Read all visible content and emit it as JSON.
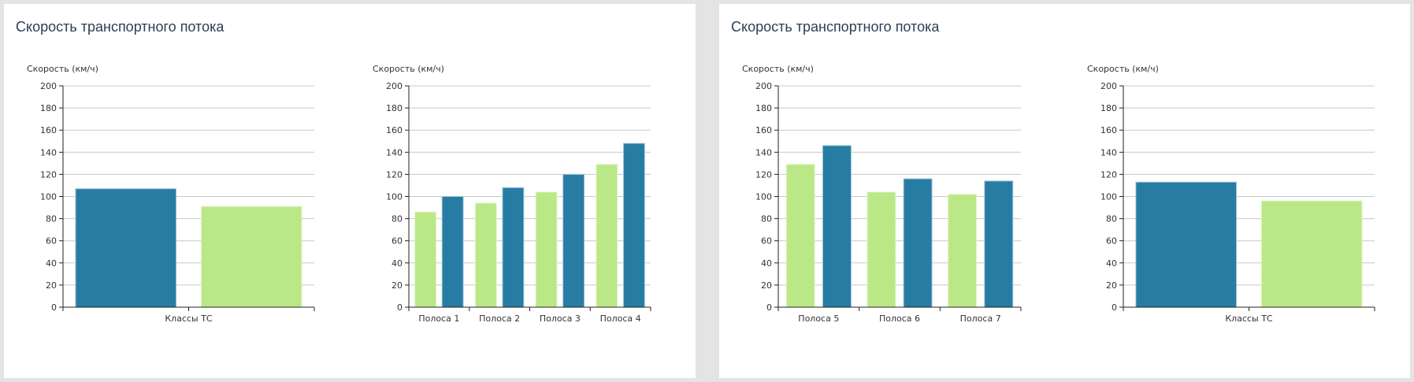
{
  "colors": {
    "blue": "#277ca3",
    "green": "#bbe887",
    "blue_stroke": "#9cc4d8",
    "green_stroke": "#e0f5c9",
    "title": "#2a3f54",
    "background": "#e4e4e4",
    "panel": "#ffffff"
  },
  "panels": [
    {
      "title": "Скорость транспортного потока"
    },
    {
      "title": "Скорость транспортного потока"
    }
  ],
  "chart_data": [
    {
      "type": "bar",
      "title": "Скорость транспортного потока",
      "ylabel": "Скорость (км/ч)",
      "xlabel": "",
      "ylim": [
        0,
        200
      ],
      "yticks": [
        0,
        20,
        40,
        60,
        80,
        100,
        120,
        140,
        160,
        180,
        200
      ],
      "grid": true,
      "categories": [
        "Классы ТС"
      ],
      "series": [
        {
          "name": "series-blue",
          "color": "#277ca3",
          "values": [
            107
          ]
        },
        {
          "name": "series-green",
          "color": "#bbe887",
          "values": [
            91
          ]
        }
      ]
    },
    {
      "type": "bar",
      "title": "Скорость транспортного потока",
      "ylabel": "Скорость (км/ч)",
      "xlabel": "",
      "ylim": [
        0,
        200
      ],
      "yticks": [
        0,
        20,
        40,
        60,
        80,
        100,
        120,
        140,
        160,
        180,
        200
      ],
      "grid": true,
      "categories": [
        "Полоса 1",
        "Полоса 2",
        "Полоса 3",
        "Полоса 4"
      ],
      "series": [
        {
          "name": "series-green",
          "color": "#bbe887",
          "values": [
            86,
            94,
            104,
            129
          ]
        },
        {
          "name": "series-blue",
          "color": "#277ca3",
          "values": [
            100,
            108,
            120,
            148
          ]
        }
      ]
    },
    {
      "type": "bar",
      "title": "Скорость транспортного потока",
      "ylabel": "Скорость (км/ч)",
      "xlabel": "",
      "ylim": [
        0,
        200
      ],
      "yticks": [
        0,
        20,
        40,
        60,
        80,
        100,
        120,
        140,
        160,
        180,
        200
      ],
      "grid": true,
      "categories": [
        "Полоса 5",
        "Полоса 6",
        "Полоса 7"
      ],
      "series": [
        {
          "name": "series-green",
          "color": "#bbe887",
          "values": [
            129,
            104,
            102
          ]
        },
        {
          "name": "series-blue",
          "color": "#277ca3",
          "values": [
            146,
            116,
            114
          ]
        }
      ]
    },
    {
      "type": "bar",
      "title": "Скорость транспортного потока",
      "ylabel": "Скорость (км/ч)",
      "xlabel": "",
      "ylim": [
        0,
        200
      ],
      "yticks": [
        0,
        20,
        40,
        60,
        80,
        100,
        120,
        140,
        160,
        180,
        200
      ],
      "grid": true,
      "categories": [
        "Классы ТС"
      ],
      "series": [
        {
          "name": "series-blue",
          "color": "#277ca3",
          "values": [
            113
          ]
        },
        {
          "name": "series-green",
          "color": "#bbe887",
          "values": [
            96
          ]
        }
      ]
    }
  ]
}
